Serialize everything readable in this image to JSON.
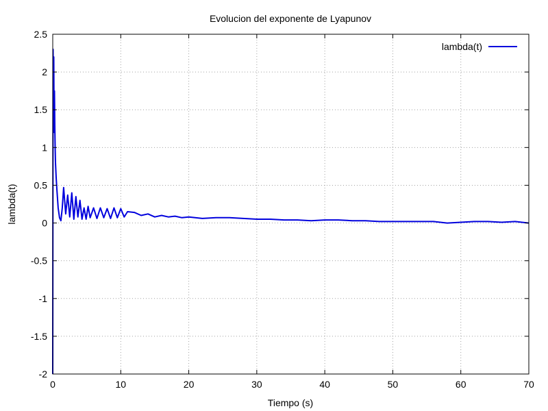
{
  "chart_data": {
    "type": "line",
    "title": "Evolucion del exponente de Lyapunov",
    "xlabel": "Tiempo (s)",
    "ylabel": "lambda(t)",
    "xlim": [
      0,
      70
    ],
    "ylim": [
      -2,
      2.5
    ],
    "xticks": [
      0,
      10,
      20,
      30,
      40,
      50,
      60,
      70
    ],
    "yticks": [
      -2,
      -1.5,
      -1,
      -0.5,
      0,
      0.5,
      1,
      1.5,
      2,
      2.5
    ],
    "xtick_labels": [
      "0",
      "10",
      "20",
      "30",
      "40",
      "50",
      "60",
      "70"
    ],
    "ytick_labels": [
      "-2",
      "-1.5",
      "-1",
      "-0.5",
      "0",
      "0.5",
      "1",
      "1.5",
      "2",
      "2.5"
    ],
    "grid": true,
    "legend_position": "top-right",
    "series": [
      {
        "name": "lambda(t)",
        "color": "#0000dd",
        "x": [
          0,
          0.05,
          0.1,
          0.15,
          0.2,
          0.25,
          0.3,
          0.35,
          0.4,
          0.45,
          0.5,
          0.6,
          0.8,
          1.0,
          1.2,
          1.4,
          1.6,
          1.9,
          2.2,
          2.5,
          2.8,
          3.1,
          3.4,
          3.7,
          4.0,
          4.3,
          4.6,
          4.9,
          5.2,
          5.5,
          6,
          6.5,
          7,
          7.5,
          8,
          8.5,
          9,
          9.5,
          10,
          10.5,
          11,
          12,
          13,
          14,
          15,
          16,
          17,
          18,
          19,
          20,
          22,
          24,
          26,
          28,
          30,
          32,
          34,
          36,
          38,
          40,
          42,
          44,
          46,
          48,
          50,
          52,
          54,
          56,
          58,
          60,
          62,
          64,
          66,
          68,
          70
        ],
        "y": [
          -2.0,
          2.3,
          1.3,
          2.2,
          1.2,
          1.75,
          1.3,
          1.0,
          0.8,
          0.7,
          0.6,
          0.45,
          0.2,
          0.07,
          0.03,
          0.2,
          0.47,
          0.12,
          0.37,
          0.08,
          0.4,
          0.05,
          0.35,
          0.08,
          0.3,
          0.05,
          0.2,
          0.05,
          0.22,
          0.07,
          0.2,
          0.06,
          0.2,
          0.07,
          0.19,
          0.06,
          0.2,
          0.07,
          0.19,
          0.08,
          0.15,
          0.14,
          0.1,
          0.12,
          0.08,
          0.1,
          0.08,
          0.09,
          0.07,
          0.08,
          0.06,
          0.07,
          0.07,
          0.06,
          0.05,
          0.05,
          0.04,
          0.04,
          0.03,
          0.04,
          0.04,
          0.03,
          0.03,
          0.02,
          0.02,
          0.02,
          0.02,
          0.02,
          0.0,
          0.01,
          0.02,
          0.02,
          0.01,
          0.02,
          0.0
        ]
      }
    ]
  }
}
